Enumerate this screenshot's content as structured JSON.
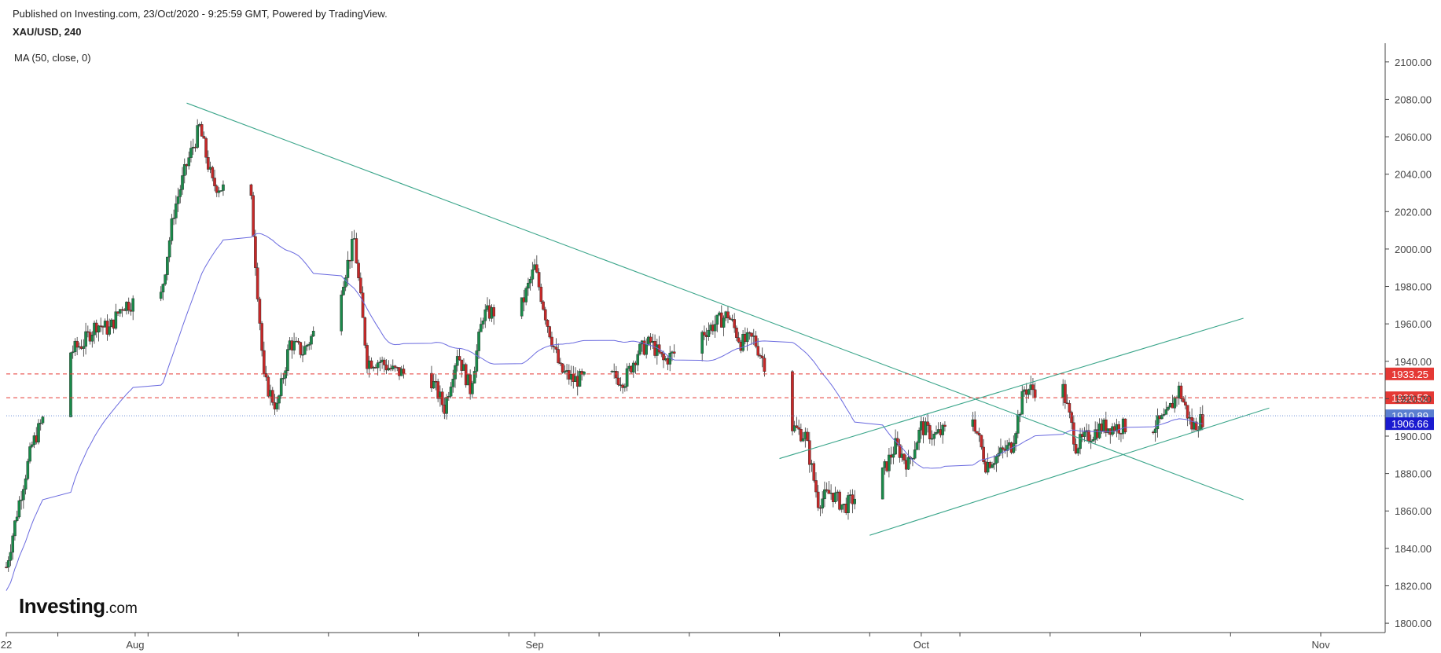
{
  "header": {
    "published": "Published on Investing.com, 23/Oct/2020 - 9:25:59 GMT, Powered by TradingView.",
    "symbol": "XAU/USD, 240",
    "indicator": "MA (50, close, 0)"
  },
  "logo": {
    "main": "Investing",
    "suffix": ".com"
  },
  "colors": {
    "up": "#1a8a4a",
    "down": "#c62828",
    "ma": "#6a6adf",
    "trend": "#3aa58a",
    "level_red": "#e53935",
    "level_blue": "#3f51b5"
  },
  "chart_data": {
    "type": "candlestick",
    "title": "XAU/USD, 240",
    "ylim": [
      1795,
      2110
    ],
    "yticks": [
      1800,
      1820,
      1840,
      1860,
      1880,
      1900,
      1920,
      1940,
      1960,
      1980,
      2000,
      2020,
      2040,
      2060,
      2080,
      2100
    ],
    "ytick_labels": [
      "1800.00",
      "1820.00",
      "1840.00",
      "1860.00",
      "1880.00",
      "1900.00",
      "1920.00",
      "1940.00",
      "1960.00",
      "1980.00",
      "2000.00",
      "2020.00",
      "2040.00",
      "2060.00",
      "2080.00",
      "2100.00"
    ],
    "date_range": [
      "2020-07-22",
      "2020-11-06"
    ],
    "x_labels": [
      {
        "date": "2020-07-22",
        "label": "22"
      },
      {
        "date": "2020-08-01",
        "label": "Aug"
      },
      {
        "date": "2020-09-01",
        "label": "Sep"
      },
      {
        "date": "2020-10-01",
        "label": "Oct"
      },
      {
        "date": "2020-11-01",
        "label": "Nov"
      }
    ],
    "price_path": [
      [
        "2020-07-22",
        1830
      ],
      [
        "2020-07-23",
        1865
      ],
      [
        "2020-07-24",
        1895
      ],
      [
        "2020-07-27",
        1945
      ],
      [
        "2020-07-28",
        1950
      ],
      [
        "2020-07-29",
        1960
      ],
      [
        "2020-07-30",
        1957
      ],
      [
        "2020-07-31",
        1970
      ],
      [
        "2020-08-03",
        1975
      ],
      [
        "2020-08-04",
        2020
      ],
      [
        "2020-08-05",
        2045
      ],
      [
        "2020-08-06",
        2065
      ],
      [
        "2020-08-07",
        2035
      ],
      [
        "2020-08-10",
        2025
      ],
      [
        "2020-08-11",
        1930
      ],
      [
        "2020-08-12",
        1915
      ],
      [
        "2020-08-13",
        1950
      ],
      [
        "2020-08-14",
        1945
      ],
      [
        "2020-08-17",
        1980
      ],
      [
        "2020-08-18",
        2005
      ],
      [
        "2020-08-19",
        1940
      ],
      [
        "2020-08-20",
        1940
      ],
      [
        "2020-08-21",
        1935
      ],
      [
        "2020-08-24",
        1930
      ],
      [
        "2020-08-25",
        1915
      ],
      [
        "2020-08-26",
        1945
      ],
      [
        "2020-08-27",
        1925
      ],
      [
        "2020-08-28",
        1965
      ],
      [
        "2020-08-31",
        1970
      ],
      [
        "2020-09-01",
        1990
      ],
      [
        "2020-09-02",
        1960
      ],
      [
        "2020-09-03",
        1935
      ],
      [
        "2020-09-04",
        1930
      ],
      [
        "2020-09-07",
        1932
      ],
      [
        "2020-09-08",
        1930
      ],
      [
        "2020-09-09",
        1945
      ],
      [
        "2020-09-10",
        1950
      ],
      [
        "2020-09-11",
        1940
      ],
      [
        "2020-09-14",
        1955
      ],
      [
        "2020-09-15",
        1960
      ],
      [
        "2020-09-16",
        1965
      ],
      [
        "2020-09-17",
        1950
      ],
      [
        "2020-09-18",
        1952
      ],
      [
        "2020-09-21",
        1905
      ],
      [
        "2020-09-22",
        1900
      ],
      [
        "2020-09-23",
        1865
      ],
      [
        "2020-09-24",
        1870
      ],
      [
        "2020-09-25",
        1862
      ],
      [
        "2020-09-28",
        1880
      ],
      [
        "2020-09-29",
        1895
      ],
      [
        "2020-09-30",
        1885
      ],
      [
        "2020-10-01",
        1905
      ],
      [
        "2020-10-02",
        1900
      ],
      [
        "2020-10-05",
        1910
      ],
      [
        "2020-10-06",
        1885
      ],
      [
        "2020-10-07",
        1890
      ],
      [
        "2020-10-08",
        1895
      ],
      [
        "2020-10-09",
        1925
      ],
      [
        "2020-10-12",
        1925
      ],
      [
        "2020-10-13",
        1895
      ],
      [
        "2020-10-14",
        1900
      ],
      [
        "2020-10-15",
        1905
      ],
      [
        "2020-10-16",
        1905
      ],
      [
        "2020-10-19",
        1905
      ],
      [
        "2020-10-20",
        1910
      ],
      [
        "2020-10-21",
        1925
      ],
      [
        "2020-10-22",
        1905
      ],
      [
        "2020-10-23",
        1910
      ]
    ],
    "ma_label": "MA (50, close, 0)",
    "trendlines": [
      {
        "from": [
          "2020-08-05",
          2078
        ],
        "to": [
          "2020-10-26",
          1866
        ]
      },
      {
        "from": [
          "2020-09-27",
          1847
        ],
        "to": [
          "2020-10-28",
          1915
        ]
      },
      {
        "from": [
          "2020-09-20",
          1888
        ],
        "to": [
          "2020-10-26",
          1963
        ]
      }
    ],
    "horizontal_levels": [
      {
        "value": 1933.25,
        "label": "1933.25",
        "color": "#e53935",
        "style": "dashed"
      },
      {
        "value": 1920.52,
        "label": "1920.52",
        "color": "#e53935",
        "style": "dashed"
      },
      {
        "value": 1910.89,
        "label": "1910.89",
        "color": "#6b8ed6",
        "style": "dotted"
      },
      {
        "value": 1906.66,
        "label": "1906.66",
        "color": "#1a1ad0",
        "style": "none"
      }
    ]
  }
}
